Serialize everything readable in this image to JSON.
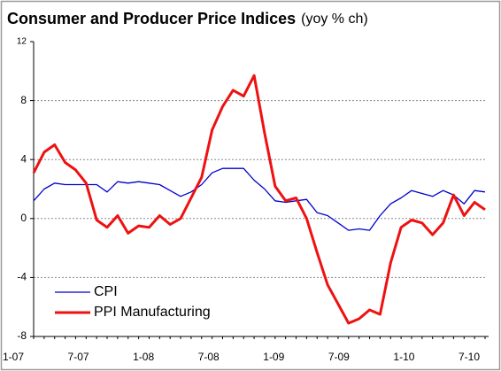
{
  "chart_data": {
    "type": "line",
    "title": "Consumer and Producer Price Indices",
    "subtitle": "(yoy % ch)",
    "categories": [
      "1-07",
      null,
      null,
      null,
      null,
      null,
      "7-07",
      null,
      null,
      null,
      null,
      null,
      "1-08",
      null,
      null,
      null,
      null,
      null,
      "7-08",
      null,
      null,
      null,
      null,
      null,
      "1-09",
      null,
      null,
      null,
      null,
      null,
      "7-09",
      null,
      null,
      null,
      null,
      null,
      "1-10",
      null,
      null,
      null,
      null,
      null,
      "7-10",
      null
    ],
    "series": [
      {
        "name": "CPI",
        "color": "#0000cc",
        "values": [
          1.2,
          2.0,
          2.4,
          2.3,
          2.3,
          2.3,
          2.3,
          1.8,
          2.5,
          2.4,
          2.5,
          2.4,
          2.3,
          1.9,
          1.5,
          1.8,
          2.3,
          3.1,
          3.4,
          3.4,
          3.4,
          2.6,
          2.0,
          1.2,
          1.1,
          1.2,
          1.3,
          0.4,
          0.2,
          -0.3,
          -0.8,
          -0.7,
          -0.8,
          0.2,
          1.0,
          1.4,
          1.9,
          1.7,
          1.5,
          1.9,
          1.6,
          1.0,
          1.9,
          1.8
        ]
      },
      {
        "name": "PPI Manufacturing",
        "color": "#ee1111",
        "values": [
          3.1,
          4.5,
          5.0,
          3.8,
          3.3,
          2.4,
          -0.1,
          -0.6,
          0.2,
          -1.0,
          -0.5,
          -0.6,
          0.2,
          -0.4,
          0.0,
          1.4,
          2.8,
          6.0,
          7.6,
          8.7,
          8.3,
          9.7,
          5.8,
          2.2,
          1.2,
          1.4,
          0.0,
          -2.3,
          -4.5,
          -5.8,
          -7.1,
          -6.8,
          -6.2,
          -6.5,
          -3.0,
          -0.6,
          -0.1,
          -0.3,
          -1.1,
          -0.3,
          1.6,
          0.2,
          1.1,
          0.6
        ]
      }
    ],
    "ylim": [
      -8,
      12
    ],
    "yticks": [
      -8,
      -4,
      0,
      4,
      8,
      12
    ],
    "grid": true,
    "legend": "lower left"
  }
}
